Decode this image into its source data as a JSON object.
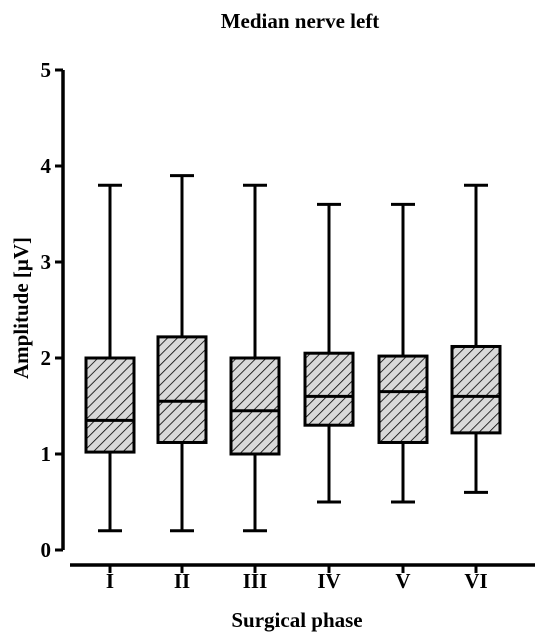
{
  "chart_data": {
    "type": "box",
    "title": "Median nerve left",
    "xlabel": "Surgical phase",
    "ylabel": "Amplitude [μV]",
    "ylim": [
      0,
      5
    ],
    "yticks": [
      "0",
      "1",
      "2",
      "3",
      "4",
      "5"
    ],
    "categories": [
      "I",
      "II",
      "III",
      "IV",
      "V",
      "VI"
    ],
    "boxes": [
      {
        "min": 0.2,
        "q1": 1.02,
        "median": 1.35,
        "q3": 2.0,
        "max": 3.8
      },
      {
        "min": 0.2,
        "q1": 1.12,
        "median": 1.55,
        "q3": 2.22,
        "max": 3.9
      },
      {
        "min": 0.2,
        "q1": 1.0,
        "median": 1.45,
        "q3": 2.0,
        "max": 3.8
      },
      {
        "min": 0.5,
        "q1": 1.3,
        "median": 1.6,
        "q3": 2.05,
        "max": 3.6
      },
      {
        "min": 0.5,
        "q1": 1.12,
        "median": 1.65,
        "q3": 2.02,
        "max": 3.6
      },
      {
        "min": 0.6,
        "q1": 1.22,
        "median": 1.6,
        "q3": 2.12,
        "max": 3.8
      }
    ],
    "box_fill": "hatched",
    "grid": false,
    "colors": {
      "stroke": "#000000",
      "fill": "#d9d9d9"
    }
  }
}
